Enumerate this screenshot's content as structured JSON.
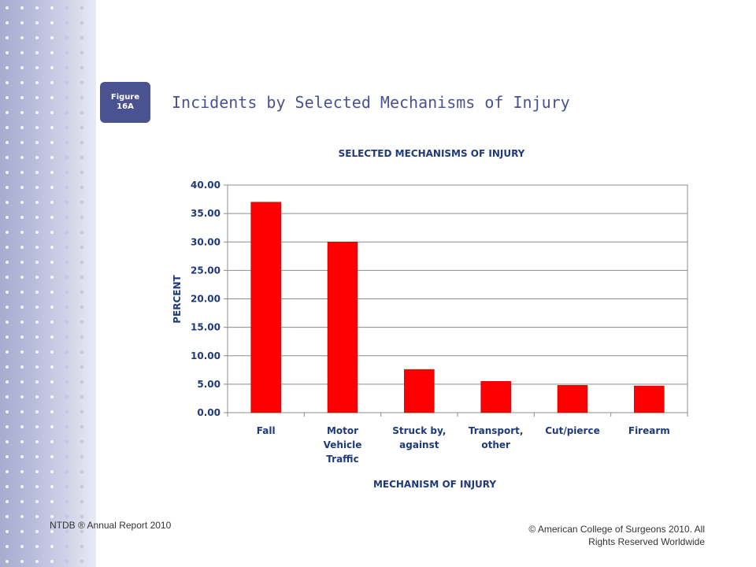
{
  "figure_badge": {
    "line1": "Figure",
    "line2": "16A"
  },
  "slide_title": "Incidents by Selected Mechanisms of Injury",
  "footer": {
    "left": "NTDB ® Annual Report 2010",
    "right_line1": "© American College of Surgeons 2010.  All",
    "right_line2": "Rights Reserved Worldwide"
  },
  "colors": {
    "bar": "#ff0000",
    "axis_text": "#1f3a78",
    "badge": "#4a5290",
    "sidebar": "#b8bcdb"
  },
  "chart_data": {
    "type": "bar",
    "title": "SELECTED MECHANISMS OF INJURY",
    "xlabel": "MECHANISM OF INJURY",
    "ylabel": "PERCENT",
    "ylim": [
      0,
      40
    ],
    "y_ticks": [
      "0.00",
      "5.00",
      "10.00",
      "15.00",
      "20.00",
      "25.00",
      "30.00",
      "35.00",
      "40.00"
    ],
    "grid": true,
    "legend": "none",
    "categories": [
      [
        "Fall"
      ],
      [
        "Motor",
        "Vehicle",
        "Traffic"
      ],
      [
        "Struck by,",
        "against"
      ],
      [
        "Transport,",
        "other"
      ],
      [
        "Cut/pierce"
      ],
      [
        "Firearm"
      ]
    ],
    "values": [
      37.0,
      30.0,
      7.6,
      5.5,
      4.8,
      4.7
    ]
  }
}
